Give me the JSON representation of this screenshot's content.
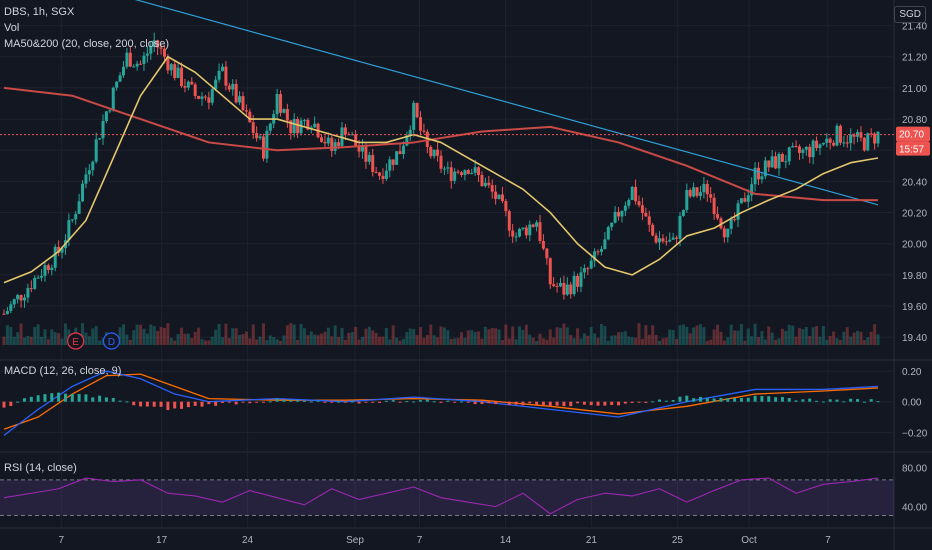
{
  "header": {
    "title": "DBS, 1h, SGX",
    "vol_label": "Vol",
    "ma_label": "MA50&200 (20, close, 200, close)",
    "currency": "SGD"
  },
  "price_labels": {
    "last_price": "20.70",
    "countdown": "15:57"
  },
  "events": [
    {
      "letter": "E",
      "color": "#f23645",
      "x_label": "10"
    },
    {
      "letter": "D",
      "color": "#2962ff",
      "x_label": "15"
    }
  ],
  "macd_label": "MACD (12, 26, close, 9)",
  "rsi_label": "RSI (14, close)",
  "colors": {
    "up": "#26a69a",
    "down": "#ef5350",
    "ma20": "#e4c76b",
    "ma200": "#c94a46",
    "trendline": "#2e9fd6",
    "macd": "#2962ff",
    "signal": "#ff6d00",
    "rsi": "#9c27b0"
  },
  "chart_data": [
    {
      "type": "line",
      "pane": "price",
      "x_ticks": [
        "7",
        "17",
        "24",
        "Sep",
        "7",
        "14",
        "21",
        "25",
        "Oct",
        "7"
      ],
      "y_ticks": [
        "21.40",
        "21.20",
        "21.00",
        "20.80",
        "20.60",
        "20.40",
        "20.20",
        "20.00",
        "19.80",
        "19.60",
        "19.40"
      ],
      "ylim": [
        19.35,
        21.5
      ],
      "series": [
        {
          "name": "close",
          "x": [
            0,
            4,
            8,
            10,
            12,
            15,
            18,
            20,
            22,
            25,
            28,
            30,
            32,
            35,
            38,
            40,
            42,
            45,
            48,
            50,
            52,
            55,
            58,
            60,
            62,
            65,
            68,
            70,
            72,
            75,
            78,
            80,
            82,
            85,
            88,
            90,
            92,
            95,
            98,
            100,
            103,
            106,
            110,
            114,
            118,
            122,
            126,
            128
          ],
          "y": [
            19.55,
            19.75,
            19.95,
            20.15,
            20.45,
            20.85,
            21.2,
            21.15,
            21.3,
            21.1,
            20.95,
            20.95,
            21.1,
            20.85,
            20.6,
            20.95,
            20.75,
            20.8,
            20.6,
            20.75,
            20.6,
            20.45,
            20.6,
            20.85,
            20.6,
            20.45,
            20.5,
            20.4,
            20.3,
            20.05,
            20.15,
            19.75,
            19.7,
            19.8,
            20.0,
            20.2,
            20.35,
            20.05,
            20.0,
            20.3,
            20.35,
            20.05,
            20.45,
            20.55,
            20.6,
            20.7,
            20.65,
            20.7
          ]
        },
        {
          "name": "MA 20",
          "x": [
            0,
            4,
            8,
            12,
            16,
            20,
            24,
            28,
            32,
            36,
            40,
            44,
            48,
            52,
            56,
            60,
            64,
            68,
            72,
            76,
            80,
            84,
            88,
            92,
            96,
            100,
            104,
            108,
            112,
            116,
            120,
            124,
            128
          ],
          "y": [
            19.75,
            19.82,
            19.95,
            20.15,
            20.55,
            20.95,
            21.2,
            21.1,
            20.95,
            20.8,
            20.8,
            20.75,
            20.7,
            20.65,
            20.65,
            20.7,
            20.65,
            20.55,
            20.45,
            20.35,
            20.2,
            20.0,
            19.85,
            19.8,
            19.9,
            20.05,
            20.1,
            20.2,
            20.28,
            20.35,
            20.45,
            20.52,
            20.55
          ]
        },
        {
          "name": "MA 200",
          "x": [
            0,
            10,
            20,
            30,
            40,
            50,
            60,
            70,
            80,
            90,
            100,
            110,
            120,
            128
          ],
          "y": [
            21.0,
            20.95,
            20.8,
            20.65,
            20.6,
            20.62,
            20.65,
            20.72,
            20.75,
            20.65,
            20.5,
            20.32,
            20.28,
            20.28
          ]
        },
        {
          "name": "trendline",
          "x": [
            0,
            128
          ],
          "y": [
            21.8,
            20.25
          ]
        }
      ]
    },
    {
      "type": "line",
      "pane": "macd",
      "y_ticks": [
        "0.20",
        "0.00",
        "−0.20"
      ],
      "ylim": [
        -0.25,
        0.22
      ],
      "series": [
        {
          "name": "macd",
          "x": [
            0,
            5,
            10,
            15,
            20,
            25,
            30,
            40,
            50,
            60,
            70,
            80,
            90,
            100,
            110,
            120,
            128
          ],
          "y": [
            -0.22,
            -0.05,
            0.1,
            0.2,
            0.15,
            0.05,
            0.0,
            0.02,
            0.0,
            0.03,
            0.0,
            -0.05,
            -0.1,
            0.0,
            0.08,
            0.08,
            0.1
          ]
        },
        {
          "name": "signal",
          "x": [
            0,
            5,
            10,
            15,
            20,
            25,
            30,
            40,
            50,
            60,
            70,
            80,
            90,
            100,
            110,
            120,
            128
          ],
          "y": [
            -0.18,
            -0.1,
            0.05,
            0.17,
            0.18,
            0.1,
            0.02,
            0.01,
            0.01,
            0.02,
            0.01,
            -0.03,
            -0.08,
            -0.03,
            0.05,
            0.07,
            0.09
          ]
        }
      ]
    },
    {
      "type": "line",
      "pane": "rsi",
      "y_ticks": [
        "80.00",
        "40.00"
      ],
      "ylim": [
        25,
        90
      ],
      "series": [
        {
          "name": "rsi",
          "x": [
            0,
            4,
            8,
            12,
            16,
            20,
            24,
            28,
            32,
            36,
            40,
            44,
            48,
            52,
            56,
            60,
            64,
            68,
            72,
            76,
            80,
            84,
            88,
            92,
            96,
            100,
            104,
            108,
            112,
            116,
            120,
            124,
            128
          ],
          "y": [
            50,
            55,
            60,
            72,
            68,
            70,
            55,
            52,
            45,
            58,
            50,
            42,
            60,
            48,
            55,
            62,
            50,
            45,
            40,
            55,
            32,
            48,
            55,
            52,
            60,
            45,
            58,
            70,
            72,
            55,
            65,
            68,
            72
          ]
        }
      ]
    }
  ]
}
